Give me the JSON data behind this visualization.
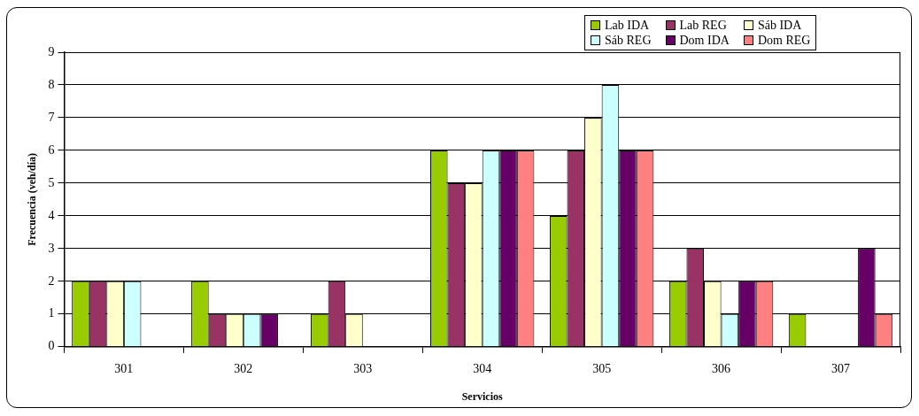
{
  "chart_data": {
    "type": "bar",
    "xlabel": "Servicios",
    "ylabel": "Frecuencia (veh/día)",
    "categories": [
      "301",
      "302",
      "303",
      "304",
      "305",
      "306",
      "307"
    ],
    "series": [
      {
        "name": "Lab IDA",
        "color": "#99cc00",
        "values": [
          2,
          2,
          1,
          6,
          4,
          2,
          1
        ]
      },
      {
        "name": "Lab REG",
        "color": "#993366",
        "values": [
          2,
          1,
          2,
          5,
          6,
          3,
          0
        ]
      },
      {
        "name": "Sáb IDA",
        "color": "#ffffcc",
        "values": [
          2,
          1,
          1,
          5,
          7,
          2,
          0
        ]
      },
      {
        "name": "Sáb REG",
        "color": "#ccffff",
        "values": [
          2,
          1,
          0,
          6,
          8,
          1,
          0
        ]
      },
      {
        "name": "Dom IDA",
        "color": "#660066",
        "values": [
          0,
          1,
          0,
          6,
          6,
          2,
          3
        ]
      },
      {
        "name": "Dom REG",
        "color": "#ff8080",
        "values": [
          0,
          0,
          0,
          6,
          6,
          2,
          1
        ]
      }
    ],
    "ylim": [
      0,
      9
    ],
    "yticks": [
      0,
      1,
      2,
      3,
      4,
      5,
      6,
      7,
      8,
      9
    ],
    "grid": "y",
    "legend": "top right"
  }
}
